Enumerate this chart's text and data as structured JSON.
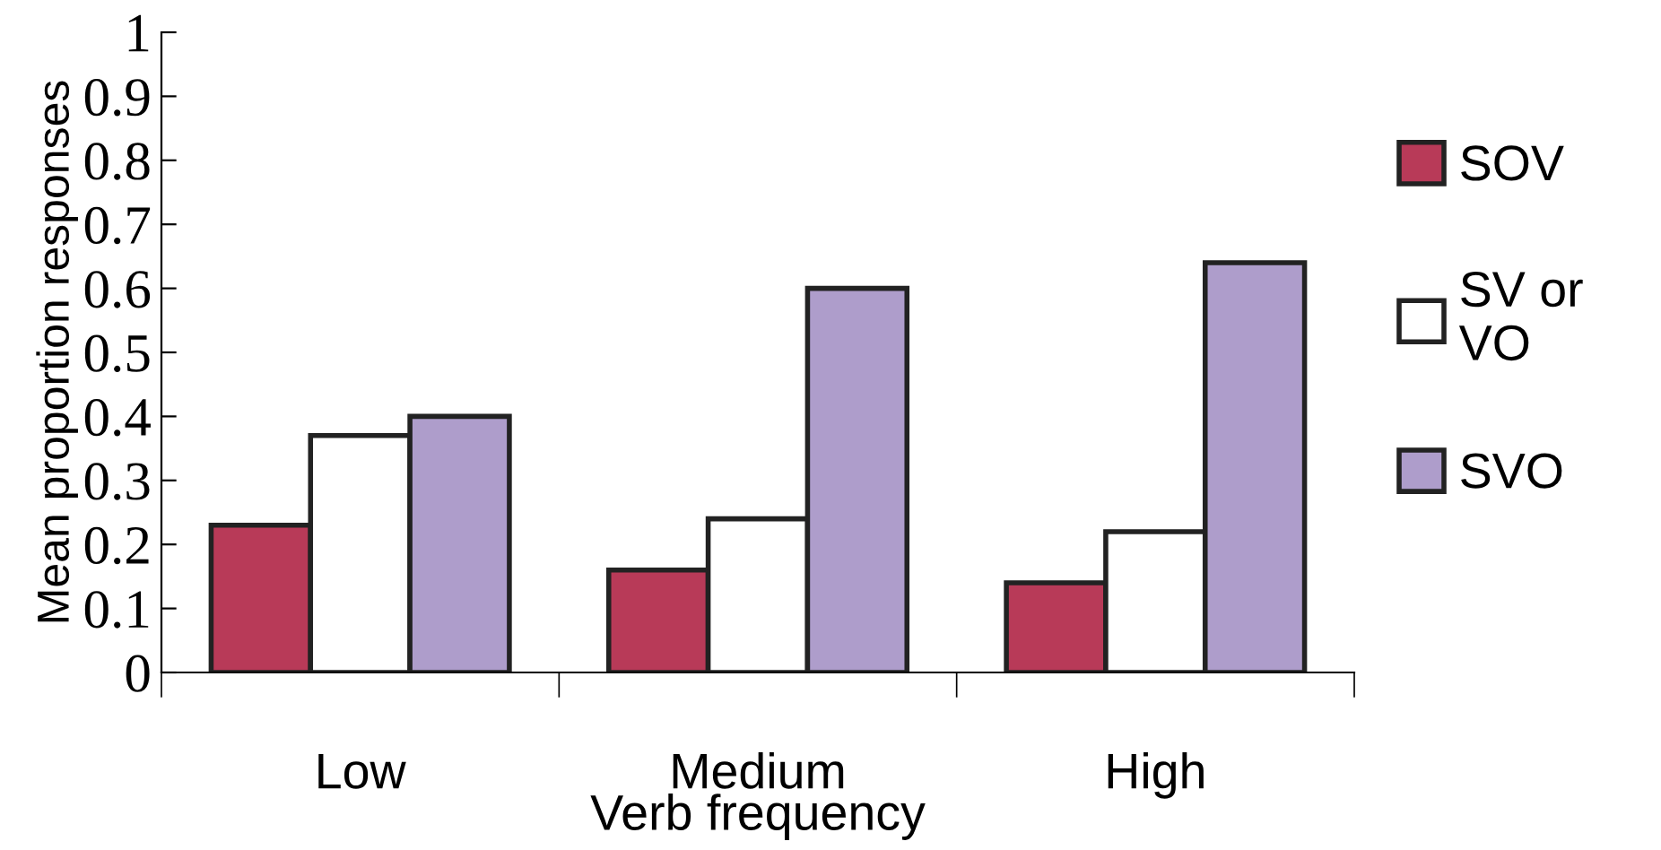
{
  "chart_data": {
    "type": "bar",
    "xlabel": "Verb frequency",
    "ylabel": "Mean proportion responses",
    "categories": [
      "Low",
      "Medium",
      "High"
    ],
    "series": [
      {
        "name": "SOV",
        "color": "#b83a58",
        "values": [
          0.23,
          0.16,
          0.14
        ]
      },
      {
        "name": "SV or\nVO",
        "color": "#ffffff",
        "values": [
          0.37,
          0.24,
          0.22
        ]
      },
      {
        "name": "SVO",
        "color": "#ae9dcb",
        "values": [
          0.4,
          0.6,
          0.64
        ]
      }
    ],
    "ylim": [
      0,
      1
    ],
    "yticks": [
      0,
      0.1,
      0.2,
      0.3,
      0.4,
      0.5,
      0.6,
      0.7,
      0.8,
      0.9,
      1
    ],
    "grid": false,
    "legend": "right"
  }
}
